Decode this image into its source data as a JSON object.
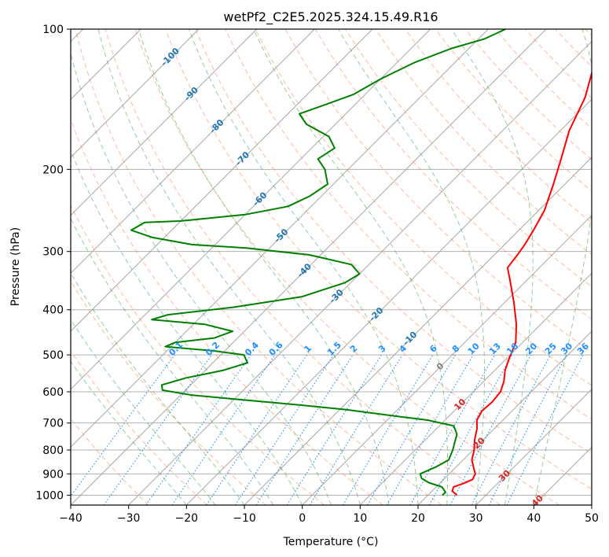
{
  "chart_data": {
    "type": "skew-t",
    "title": "wetPf2_C2E5.2025.324.15.49.R16",
    "xlabel": "Temperature (°C)",
    "ylabel": "Pressure (hPa)",
    "xlim": [
      -40,
      50
    ],
    "ylim": [
      1050,
      100
    ],
    "x_ticks": [
      -40,
      -30,
      -20,
      -10,
      0,
      10,
      20,
      30,
      40,
      50
    ],
    "x_tick_labels": [
      "−40",
      "−30",
      "−20",
      "−10",
      "0",
      "10",
      "20",
      "30",
      "40",
      "50"
    ],
    "y_ticks": [
      1000,
      900,
      800,
      700,
      600,
      500,
      400,
      300,
      200,
      100
    ],
    "y_tick_labels": [
      "1000",
      "900",
      "800",
      "700",
      "600",
      "500",
      "400",
      "300",
      "200",
      "100"
    ],
    "colors": {
      "temperature": "#ff0000",
      "dewpoint": "#008000",
      "isotherm": "#808080",
      "dry_adiabat": "#ff7f50",
      "moist_adiabat": "#2ca02c",
      "mixing_ratio": "#1e90ff",
      "isotherm_label_cold": "#1f77b4",
      "isotherm_label_warm": "#d62728",
      "isotherm_label_zero": "#808080"
    },
    "temperature_profile": {
      "name": "Temperature",
      "points": [
        [
          25,
          1000
        ],
        [
          23.5,
          980
        ],
        [
          23,
          960
        ],
        [
          24,
          945
        ],
        [
          25,
          925
        ],
        [
          24.5,
          900
        ],
        [
          23,
          870
        ],
        [
          21.5,
          840
        ],
        [
          20.2,
          800
        ],
        [
          18.5,
          760
        ],
        [
          17,
          720
        ],
        [
          15.5,
          690
        ],
        [
          14.8,
          660
        ],
        [
          15,
          630
        ],
        [
          14.7,
          600
        ],
        [
          13.5,
          570
        ],
        [
          11.8,
          540
        ],
        [
          10.5,
          510
        ],
        [
          8.8,
          470
        ],
        [
          5.8,
          430
        ],
        [
          1.5,
          385
        ],
        [
          -3,
          345
        ],
        [
          -5.5,
          325
        ],
        [
          -6,
          305
        ],
        [
          -6.5,
          290
        ],
        [
          -7.5,
          270
        ],
        [
          -9,
          245
        ],
        [
          -12,
          215
        ],
        [
          -15,
          190
        ],
        [
          -18.5,
          165
        ],
        [
          -21.5,
          140
        ],
        [
          -25,
          122
        ],
        [
          -28,
          110
        ],
        [
          -31.5,
          100
        ]
      ]
    },
    "dewpoint_profile": {
      "name": "Dewpoint",
      "points": [
        [
          22.5,
          1000
        ],
        [
          22.5,
          985
        ],
        [
          21,
          960
        ],
        [
          18,
          940
        ],
        [
          16,
          920
        ],
        [
          15,
          900
        ],
        [
          16.5,
          870
        ],
        [
          17.5,
          840
        ],
        [
          16.5,
          800
        ],
        [
          15.5,
          770
        ],
        [
          14.5,
          740
        ],
        [
          12.5,
          710
        ],
        [
          7,
          690
        ],
        [
          0,
          675
        ],
        [
          -9,
          655
        ],
        [
          -18,
          640
        ],
        [
          -28,
          625
        ],
        [
          -38,
          610
        ],
        [
          -44,
          595
        ],
        [
          -45,
          580
        ],
        [
          -42,
          560
        ],
        [
          -37,
          540
        ],
        [
          -34,
          520
        ],
        [
          -36,
          500
        ],
        [
          -42,
          490
        ],
        [
          -51,
          480
        ],
        [
          -50,
          470
        ],
        [
          -44,
          460
        ],
        [
          -42,
          445
        ],
        [
          -48,
          430
        ],
        [
          -58,
          420
        ],
        [
          -56,
          410
        ],
        [
          -46,
          395
        ],
        [
          -36,
          375
        ],
        [
          -31,
          350
        ],
        [
          -30,
          335
        ],
        [
          -33,
          320
        ],
        [
          -42,
          305
        ],
        [
          -54,
          295
        ],
        [
          -64,
          290
        ],
        [
          -72,
          280
        ],
        [
          -77,
          270
        ],
        [
          -76,
          260
        ],
        [
          -70,
          258
        ],
        [
          -60,
          250
        ],
        [
          -54,
          240
        ],
        [
          -52,
          228
        ],
        [
          -51,
          215
        ],
        [
          -54,
          200
        ],
        [
          -57,
          190
        ],
        [
          -56,
          180
        ],
        [
          -59,
          170
        ],
        [
          -65,
          160
        ],
        [
          -68,
          152
        ],
        [
          -65,
          145
        ],
        [
          -62,
          138
        ],
        [
          -60,
          128
        ],
        [
          -57,
          118
        ],
        [
          -53,
          110
        ],
        [
          -49,
          105
        ],
        [
          -47,
          100
        ]
      ]
    },
    "isotherm_labels": [
      {
        "t": -100,
        "label": "-100"
      },
      {
        "t": -90,
        "label": "-90"
      },
      {
        "t": -80,
        "label": "-80"
      },
      {
        "t": -70,
        "label": "-70"
      },
      {
        "t": -60,
        "label": "-60"
      },
      {
        "t": -50,
        "label": "-50"
      },
      {
        "t": -40,
        "label": "-40"
      },
      {
        "t": -30,
        "label": "-30"
      },
      {
        "t": -20,
        "label": "-20"
      },
      {
        "t": -10,
        "label": "-10"
      },
      {
        "t": 0,
        "label": "0"
      },
      {
        "t": 10,
        "label": "10"
      },
      {
        "t": 20,
        "label": "20"
      },
      {
        "t": 30,
        "label": "30"
      },
      {
        "t": 40,
        "label": "40"
      }
    ],
    "mixing_ratios": [
      {
        "w": 0.1,
        "label": "0.1"
      },
      {
        "w": 0.2,
        "label": "0.2"
      },
      {
        "w": 0.4,
        "label": "0.4"
      },
      {
        "w": 0.6,
        "label": "0.6"
      },
      {
        "w": 1,
        "label": "1"
      },
      {
        "w": 1.5,
        "label": "1.5"
      },
      {
        "w": 2,
        "label": "2"
      },
      {
        "w": 3,
        "label": "3"
      },
      {
        "w": 4,
        "label": "4"
      },
      {
        "w": 6,
        "label": "6"
      },
      {
        "w": 8,
        "label": "8"
      },
      {
        "w": 10,
        "label": "10"
      },
      {
        "w": 13,
        "label": "13"
      },
      {
        "w": 16,
        "label": "16"
      },
      {
        "w": 20,
        "label": "20"
      },
      {
        "w": 25,
        "label": "25"
      },
      {
        "w": 30,
        "label": "30"
      },
      {
        "w": 36,
        "label": "36"
      }
    ]
  }
}
